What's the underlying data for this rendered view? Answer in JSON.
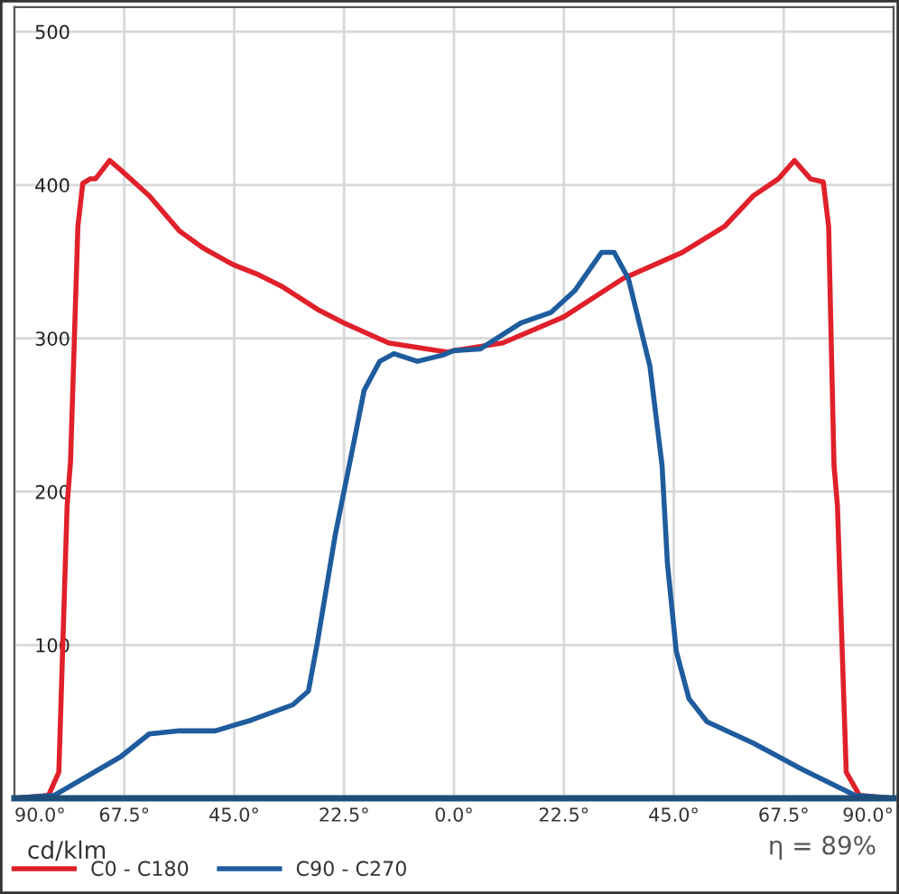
{
  "chart_data": {
    "type": "line",
    "annotations": [
      "cd/klm",
      "η = 89%"
    ],
    "xlim": [
      -90,
      90
    ],
    "ylim": [
      0,
      516
    ],
    "xticks": [
      {
        "value": -90,
        "label": "90.0°"
      },
      {
        "value": -67.5,
        "label": "67.5°"
      },
      {
        "value": -45,
        "label": "45.0°"
      },
      {
        "value": -22.5,
        "label": "22.5°"
      },
      {
        "value": 0,
        "label": "0.0°"
      },
      {
        "value": 22.5,
        "label": "22.5°"
      },
      {
        "value": 45,
        "label": "45.0°"
      },
      {
        "value": 67.5,
        "label": "67.5°"
      },
      {
        "value": 90,
        "label": "90.0°"
      }
    ],
    "yticks": [
      100,
      200,
      300,
      400,
      500
    ],
    "grid": true,
    "legend": "bottom left",
    "line_style": "solid",
    "series": [
      {
        "name": "C0 - C180",
        "color": "#e0202a",
        "x": [
          -90,
          -83,
          -80.9,
          -79.2,
          -78.5,
          -77,
          -76,
          -74.5,
          -73.4,
          -70.5,
          -68.3,
          -62.4,
          -56.2,
          -51.4,
          -45.2,
          -40.4,
          -35.3,
          -28,
          -22.5,
          -13.4,
          -1.3,
          0,
          10,
          22.5,
          34.6,
          46.7,
          55.4,
          61.3,
          66.4,
          69.7,
          73,
          75.6,
          76.7,
          77.8,
          78.5,
          80.3,
          83,
          90
        ],
        "values": [
          0,
          2,
          17,
          191,
          220,
          373,
          401,
          404,
          404,
          416,
          410,
          393,
          370,
          359,
          348,
          342,
          334,
          319,
          310,
          297,
          291,
          292,
          297,
          314,
          339,
          356,
          373,
          393,
          404,
          416,
          404,
          402,
          373,
          217,
          191,
          17,
          2,
          0
        ]
      },
      {
        "name": "C90 - C270",
        "color": "#1f5c9e",
        "x": [
          -90,
          -81.8,
          -68.3,
          -62.4,
          -56.2,
          -48.9,
          -41.5,
          -33,
          -29.8,
          -28,
          -24.3,
          -20.7,
          -18.4,
          -15.2,
          -12.3,
          -7.5,
          -2.4,
          0,
          5.3,
          13.7,
          19.9,
          24.7,
          30.2,
          32.8,
          35.7,
          40.1,
          42.6,
          43.7,
          45.5,
          48.1,
          51.8,
          61.3,
          71.2,
          82.1,
          90
        ],
        "values": [
          0,
          2,
          27,
          42,
          44,
          44,
          51,
          61,
          70,
          101,
          172,
          229,
          266,
          285,
          290,
          285,
          289,
          292,
          293,
          310,
          317,
          331,
          356,
          356,
          339,
          282,
          217,
          153,
          96,
          65,
          50,
          36,
          19,
          2,
          0
        ]
      }
    ]
  }
}
